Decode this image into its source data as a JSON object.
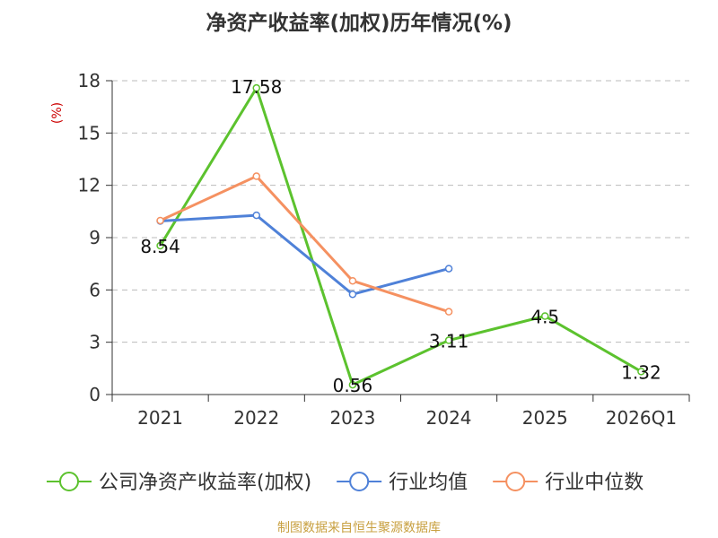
{
  "chart_data": {
    "type": "line",
    "title": "净资产收益率(加权)历年情况(%)",
    "ylabel": "(%)",
    "xlabel": "",
    "categories": [
      "2021",
      "2022",
      "2023",
      "2024",
      "2025",
      "2026Q1"
    ],
    "ylim": [
      0,
      18
    ],
    "yticks": [
      0,
      3,
      6,
      9,
      12,
      15,
      18
    ],
    "grid": "horizontal-dashed",
    "legend_position": "bottom",
    "series": [
      {
        "name": "公司净资产收益率(加权)",
        "color": "#5cc22e",
        "values": [
          8.54,
          17.58,
          0.56,
          3.11,
          4.5,
          1.32
        ],
        "labels": [
          "8.54",
          "17.58",
          "0.56",
          "3.11",
          "4.5",
          "1.32"
        ]
      },
      {
        "name": "行业均值",
        "color": "#4f81d8",
        "values": [
          9.95,
          10.28,
          5.75,
          7.22,
          null,
          null
        ]
      },
      {
        "name": "行业中位数",
        "color": "#f59161",
        "values": [
          9.98,
          12.52,
          6.52,
          4.75,
          null,
          null
        ]
      }
    ]
  },
  "source": "制图数据来自恒生聚源数据库",
  "colors": {
    "title": "#333333",
    "ylabel": "#cc0000",
    "axis": "#333333",
    "grid": "#bbbbbb",
    "source": "#c8a040"
  }
}
